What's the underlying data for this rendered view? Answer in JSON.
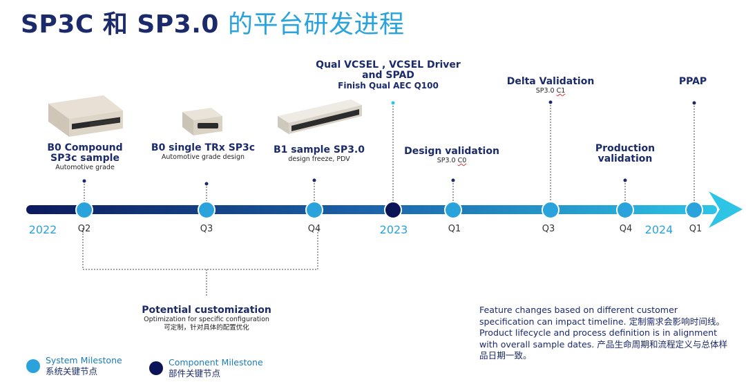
{
  "title": {
    "part1": "SP3C 和 SP3.0",
    "part2": "的平台研发进程"
  },
  "years": [
    "2022",
    "2023",
    "2024"
  ],
  "quarters": [
    "Q2",
    "Q3",
    "Q4",
    "Q1",
    "Q3",
    "Q4",
    "Q1"
  ],
  "milestones": [
    {
      "title1": "B0 Compound",
      "title2": "SP3c sample",
      "sub": "Automotive grade"
    },
    {
      "title1": "B0 single TRx SP3c",
      "sub": "Automotive grade design"
    },
    {
      "title1": "B1 sample SP3.0",
      "sub": "design freeze, PDV"
    },
    {
      "title1": "Qual VCSEL , VCSEL Driver",
      "title2": "and SPAD",
      "title3": "Finish Qual AEC Q100"
    },
    {
      "title1": "Design validation",
      "sub_pre": "SP3.0 ",
      "sub_sq": "C0"
    },
    {
      "title1": "Delta Validation",
      "sub_pre": "SP3.0 ",
      "sub_sq": "C1"
    },
    {
      "title1": "Production",
      "title2": "validation"
    },
    {
      "title1": "PPAP"
    }
  ],
  "customization": {
    "title": "Potential customization",
    "sub1": "Optimization for specific configuration",
    "sub2": "可定制，针对具体的配置优化"
  },
  "note": "Feature changes based on different customer specification can impact timeline. 定制需求会影响时间线。Product lifecycle and process definition is in alignment with overall sample dates. 产品生命周期和流程定义与总体样品日期一致。",
  "legend": {
    "system": {
      "en": "System Milestone",
      "zh": "系统关键节点",
      "color": "#2aa3dc"
    },
    "component": {
      "en": "Component Milestone",
      "zh": "部件关键节点",
      "color": "#0a1456"
    }
  },
  "colors": {
    "navy": "#1b2a6b",
    "accent": "#2aa3dc",
    "arrow": "#2ec4e6"
  }
}
